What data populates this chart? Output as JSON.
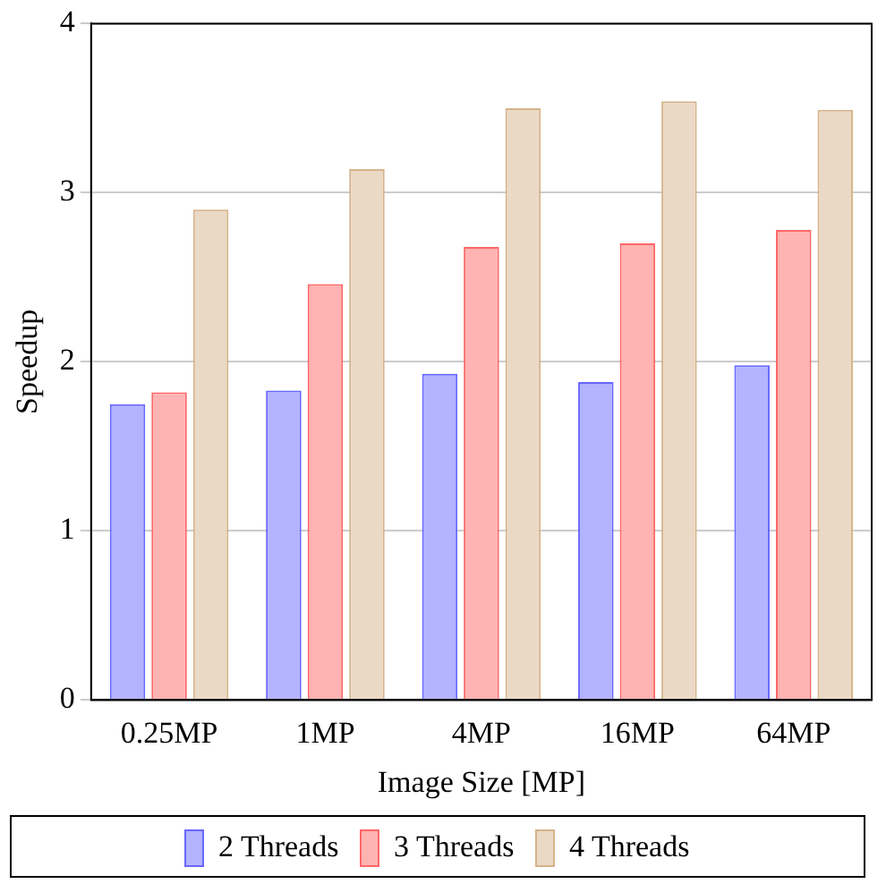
{
  "chart_data": {
    "type": "bar",
    "xlabel": "Image Size [MP]",
    "ylabel": "Speedup",
    "categories": [
      "0.25MP",
      "1MP",
      "4MP",
      "16MP",
      "64MP"
    ],
    "series": [
      {
        "name": "2 Threads",
        "color": "#b3b3ff",
        "values": [
          1.75,
          1.83,
          1.93,
          1.88,
          1.98
        ]
      },
      {
        "name": "3 Threads",
        "color": "#ffb3b3",
        "values": [
          1.82,
          2.46,
          2.68,
          2.7,
          2.78
        ]
      },
      {
        "name": "4 Threads",
        "color": "#ead9c5",
        "values": [
          2.9,
          3.14,
          3.5,
          3.54,
          3.49
        ]
      }
    ],
    "ylim": [
      0,
      4
    ],
    "yticks": [
      0,
      1,
      2,
      3,
      4
    ],
    "grid": "y",
    "legend": "bottom"
  }
}
